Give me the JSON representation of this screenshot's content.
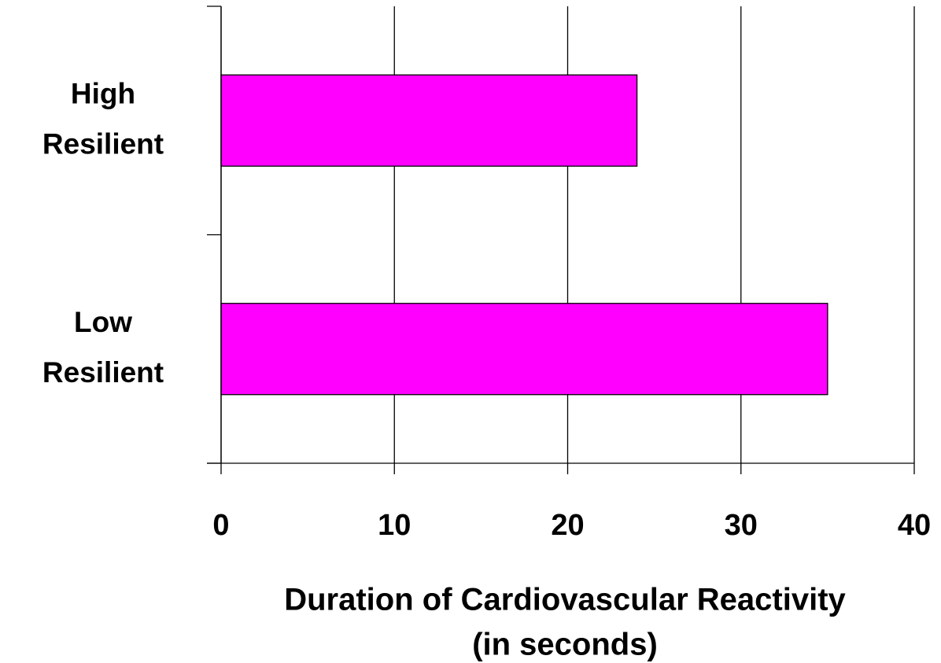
{
  "chart_data": {
    "type": "bar",
    "orientation": "horizontal",
    "categories": [
      "High Resilient",
      "Low Resilient"
    ],
    "values": [
      24,
      35
    ],
    "color": "#ff00ff",
    "xlim": [
      0,
      40
    ],
    "xticks": [
      0,
      10,
      20,
      30,
      40
    ],
    "grid": true,
    "xlabel": [
      "Duration of Cardiovascular Reactivity",
      "(in seconds)"
    ]
  }
}
